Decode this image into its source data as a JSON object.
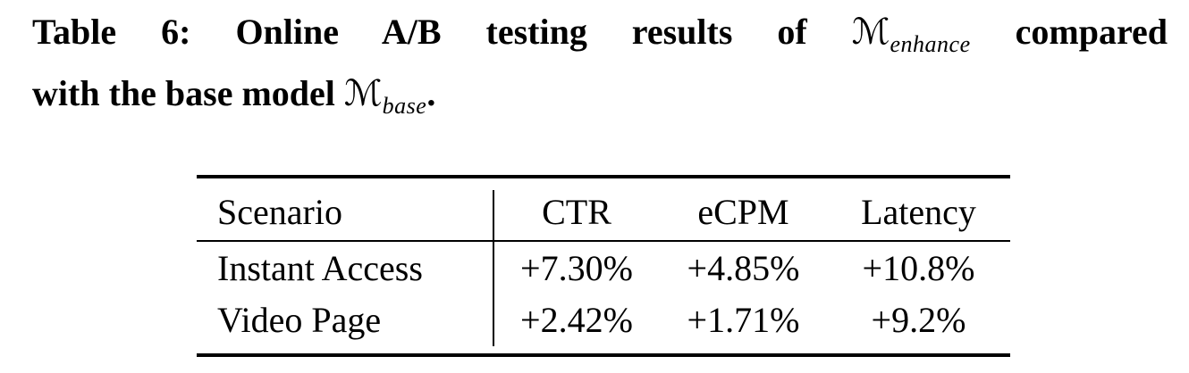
{
  "caption": {
    "line1_text": "Table 6: Online A/B testing results of",
    "math1_symbol": "ℳ",
    "math1_subscript": "enhance",
    "line1_end": "compared",
    "line2_text": "with the base model",
    "math2_symbol": "ℳ",
    "math2_subscript": "base",
    "line2_end": "."
  },
  "table": {
    "columns": [
      "Scenario",
      "CTR",
      "eCPM",
      "Latency"
    ],
    "rows": [
      {
        "scenario": "Instant Access",
        "ctr": "+7.30%",
        "ecpm": "+4.85%",
        "latency": "+10.8%"
      },
      {
        "scenario": "Video Page",
        "ctr": "+2.42%",
        "ecpm": "+1.71%",
        "latency": "+9.2%"
      }
    ]
  },
  "colors": {
    "text": "#000000",
    "background": "#ffffff",
    "rule": "#000000"
  }
}
